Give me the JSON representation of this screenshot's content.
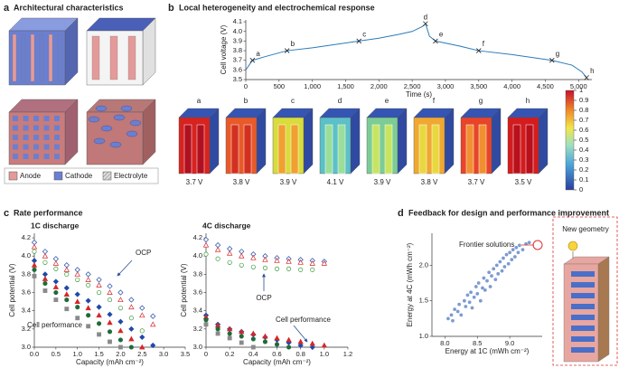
{
  "panels": {
    "a": {
      "letter": "a",
      "title": "Architectural characteristics",
      "legend": [
        "Anode",
        "Cathode",
        "Electrolyte"
      ]
    },
    "b": {
      "letter": "b",
      "title": "Local heterogeneity and electrochemical response",
      "renders": [
        {
          "label": "a",
          "voltage": "3.7 V",
          "outer": "#d7231f",
          "inner": "#b01020"
        },
        {
          "label": "b",
          "voltage": "3.8 V",
          "outer": "#e85a2a",
          "inner": "#d23020"
        },
        {
          "label": "c",
          "voltage": "3.9 V",
          "outer": "#d8dc3c",
          "inner": "#f0a030"
        },
        {
          "label": "d",
          "voltage": "4.1 V",
          "outer": "#5cc0c8",
          "inner": "#9ade9a"
        },
        {
          "label": "e",
          "voltage": "3.9 V",
          "outer": "#7ccc96",
          "inner": "#c8e460"
        },
        {
          "label": "f",
          "voltage": "3.8 V",
          "outer": "#f0a832",
          "inner": "#e8d840"
        },
        {
          "label": "g",
          "voltage": "3.7 V",
          "outer": "#e8442a",
          "inner": "#f09030"
        },
        {
          "label": "h",
          "voltage": "3.5 V",
          "outer": "#d41c1e",
          "inner": "#b8101c"
        }
      ],
      "colorbar": {
        "ticks": [
          0,
          0.1,
          0.2,
          0.3,
          0.4,
          0.5,
          0.6,
          0.7,
          0.8,
          0.9,
          1
        ]
      }
    },
    "c": {
      "letter": "c",
      "title": "Rate performance"
    },
    "d": {
      "letter": "d",
      "title": "Feedback for design and performance improvement",
      "diagram_label": "New geometry"
    }
  },
  "chart_data": [
    {
      "type": "line",
      "xlabel": "Time (s)",
      "ylabel": "Cell voltage (V)",
      "xlim": [
        0,
        5200
      ],
      "ylim": [
        3.5,
        4.12
      ],
      "xticks": [
        0,
        500,
        {
          "value": 1000,
          "label": "1,000"
        },
        {
          "value": 1500,
          "label": "1,500"
        },
        {
          "value": 2000,
          "label": "2,000"
        },
        {
          "value": 2500,
          "label": "2,500"
        },
        {
          "value": 3000,
          "label": "3,000"
        },
        {
          "value": 3500,
          "label": "3,500"
        },
        {
          "value": 4000,
          "label": "4,000"
        },
        {
          "value": 4500,
          "label": "4,500"
        },
        {
          "value": 5000,
          "label": "5,000"
        }
      ],
      "yticks": [
        3.5,
        3.6,
        3.7,
        3.8,
        3.9,
        {
          "value": 4,
          "label": "4.0"
        },
        4.1
      ],
      "x": [
        0,
        100,
        300,
        620,
        1000,
        1400,
        1700,
        2000,
        2300,
        2500,
        2650,
        2700,
        2760,
        2850,
        3200,
        3500,
        4000,
        4600,
        4900,
        5050,
        5120
      ],
      "series": [
        {
          "color": "#2b7bb9",
          "values": [
            3.6,
            3.7,
            3.74,
            3.8,
            3.83,
            3.87,
            3.9,
            3.93,
            3.97,
            4.0,
            4.05,
            4.08,
            3.95,
            3.9,
            3.85,
            3.8,
            3.76,
            3.7,
            3.65,
            3.58,
            3.52
          ]
        }
      ],
      "markers": {
        "x": [
          100,
          620,
          1700,
          2700,
          2850,
          3500,
          4600,
          5120
        ],
        "values": [
          3.7,
          3.8,
          3.9,
          4.08,
          3.9,
          3.8,
          3.7,
          3.52
        ],
        "labels": [
          "a",
          "b",
          "c",
          "d",
          "e",
          "f",
          "g",
          "h"
        ]
      }
    },
    {
      "type": "scatter",
      "title": "1C discharge",
      "xlabel": "Capacity (mAh cm⁻²)",
      "ylabel": "Cell potential (V)",
      "xlim": [
        0,
        3.5
      ],
      "ylim": [
        3,
        4.25
      ],
      "xticks": [
        {
          "value": 0,
          "label": "0.0"
        },
        0.5,
        {
          "value": 1,
          "label": "1.0"
        },
        1.5,
        {
          "value": 2,
          "label": "2.0"
        },
        2.5,
        {
          "value": 3,
          "label": "3.0"
        },
        3.5
      ],
      "yticks": [
        {
          "value": 3,
          "label": "3.0"
        },
        3.2,
        3.4,
        3.6,
        3.8,
        {
          "value": 4,
          "label": "4.0"
        },
        4.2
      ],
      "annotations": [
        "OCP",
        "Cell performance"
      ],
      "series": [
        {
          "color": "#1f4aa8",
          "marker": "diamond",
          "filled": false,
          "x": [
            0,
            0.25,
            0.5,
            0.75,
            1,
            1.25,
            1.5,
            1.75,
            2,
            2.25,
            2.5,
            2.75
          ],
          "values": [
            4.15,
            4.05,
            3.97,
            3.9,
            3.85,
            3.8,
            3.74,
            3.67,
            3.6,
            3.52,
            3.43,
            3.34
          ]
        },
        {
          "color": "#d62728",
          "marker": "triangle",
          "filled": false,
          "x": [
            0,
            0.25,
            0.5,
            0.75,
            1,
            1.25,
            1.5,
            1.75,
            2,
            2.25,
            2.5,
            2.75
          ],
          "values": [
            4.1,
            4.0,
            3.92,
            3.85,
            3.8,
            3.74,
            3.68,
            3.6,
            3.52,
            3.44,
            3.35,
            3.25
          ]
        },
        {
          "color": "#3a9a3a",
          "marker": "circle",
          "filled": false,
          "x": [
            0,
            0.25,
            0.5,
            0.75,
            1,
            1.25,
            1.5,
            1.75,
            2,
            2.25,
            2.5
          ],
          "values": [
            4.05,
            3.93,
            3.86,
            3.8,
            3.74,
            3.68,
            3.6,
            3.52,
            3.43,
            3.32,
            3.18
          ]
        },
        {
          "color": "#1f4aa8",
          "marker": "diamond",
          "filled": true,
          "x": [
            0,
            0.25,
            0.5,
            0.75,
            1,
            1.25,
            1.5,
            1.75,
            2,
            2.25,
            2.5,
            2.75
          ],
          "values": [
            3.95,
            3.8,
            3.72,
            3.65,
            3.58,
            3.51,
            3.44,
            3.36,
            3.28,
            3.2,
            3.11,
            3.02
          ]
        },
        {
          "color": "#d62728",
          "marker": "triangle",
          "filled": true,
          "x": [
            0,
            0.25,
            0.5,
            0.75,
            1,
            1.25,
            1.5,
            1.75,
            2,
            2.25,
            2.5
          ],
          "values": [
            3.9,
            3.75,
            3.66,
            3.58,
            3.5,
            3.43,
            3.35,
            3.27,
            3.18,
            3.09,
            3.0
          ]
        },
        {
          "color": "#1e6b3a",
          "marker": "circle",
          "filled": true,
          "x": [
            0,
            0.25,
            0.5,
            0.75,
            1,
            1.25,
            1.5,
            1.75,
            2,
            2.25
          ],
          "values": [
            3.85,
            3.7,
            3.6,
            3.52,
            3.44,
            3.35,
            3.26,
            3.17,
            3.08,
            3.0
          ]
        },
        {
          "color": "#8a8a8a",
          "marker": "square",
          "filled": true,
          "x": [
            0,
            0.25,
            0.5,
            0.75,
            1,
            1.25,
            1.5,
            1.75,
            2
          ],
          "values": [
            3.78,
            3.62,
            3.52,
            3.42,
            3.32,
            3.23,
            3.14,
            3.06,
            3.0
          ]
        }
      ]
    },
    {
      "type": "scatter",
      "title": "4C discharge",
      "xlabel": "Capacity (mAh cm⁻²)",
      "ylabel": "Cell potential (V)",
      "xlim": [
        0,
        1.2
      ],
      "ylim": [
        3,
        4.25
      ],
      "xticks": [
        0,
        0.2,
        0.4,
        0.6,
        0.8,
        {
          "value": 1,
          "label": "1.0"
        },
        1.2
      ],
      "yticks": [
        {
          "value": 3,
          "label": "3.0"
        },
        3.2,
        3.4,
        3.6,
        3.8,
        {
          "value": 4,
          "label": "4.0"
        },
        4.2
      ],
      "annotations": [
        "OCP",
        "Cell performance"
      ],
      "series": [
        {
          "color": "#1f4aa8",
          "marker": "diamond",
          "filled": false,
          "x": [
            0,
            0.1,
            0.2,
            0.3,
            0.4,
            0.5,
            0.6,
            0.7,
            0.8,
            0.9,
            1
          ],
          "values": [
            4.18,
            4.12,
            4.08,
            4.05,
            4.02,
            4.0,
            3.98,
            3.97,
            3.96,
            3.95,
            3.94
          ]
        },
        {
          "color": "#d62728",
          "marker": "triangle",
          "filled": false,
          "x": [
            0,
            0.1,
            0.2,
            0.3,
            0.4,
            0.5,
            0.6,
            0.7,
            0.8,
            0.9,
            1
          ],
          "values": [
            4.12,
            4.07,
            4.03,
            4.0,
            3.98,
            3.96,
            3.95,
            3.94,
            3.93,
            3.92,
            3.92
          ]
        },
        {
          "color": "#3a9a3a",
          "marker": "circle",
          "filled": false,
          "x": [
            0,
            0.1,
            0.2,
            0.3,
            0.4,
            0.5,
            0.6,
            0.7,
            0.8,
            0.9
          ],
          "values": [
            4.02,
            3.97,
            3.93,
            3.9,
            3.88,
            3.87,
            3.86,
            3.86,
            3.85,
            3.85
          ]
        },
        {
          "color": "#1f4aa8",
          "marker": "diamond",
          "filled": true,
          "x": [
            0,
            0.1,
            0.2,
            0.3,
            0.4,
            0.5,
            0.6,
            0.7,
            0.8,
            0.9
          ],
          "values": [
            3.35,
            3.25,
            3.2,
            3.17,
            3.14,
            3.11,
            3.08,
            3.05,
            3.02,
            3.0
          ]
        },
        {
          "color": "#d62728",
          "marker": "triangle",
          "filled": true,
          "x": [
            0,
            0.1,
            0.2,
            0.3,
            0.4,
            0.5,
            0.6,
            0.7,
            0.8,
            0.9,
            1
          ],
          "values": [
            3.33,
            3.24,
            3.2,
            3.17,
            3.15,
            3.12,
            3.1,
            3.08,
            3.06,
            3.04,
            3.02
          ]
        },
        {
          "color": "#1e6b3a",
          "marker": "circle",
          "filled": true,
          "x": [
            0,
            0.1,
            0.2,
            0.3,
            0.4,
            0.5,
            0.6,
            0.7
          ],
          "values": [
            3.3,
            3.2,
            3.15,
            3.12,
            3.09,
            3.06,
            3.03,
            3.0
          ]
        },
        {
          "color": "#8a8a8a",
          "marker": "square",
          "filled": true,
          "x": [
            0,
            0.1,
            0.2,
            0.3,
            0.4
          ],
          "values": [
            3.25,
            3.15,
            3.1,
            3.05,
            3.0
          ]
        }
      ]
    },
    {
      "type": "scatter",
      "xlabel": "Energy at 1C (mWh cm⁻²)",
      "ylabel": "Energy at 4C (mWh cm⁻²)",
      "xlim": [
        7.8,
        9.5
      ],
      "ylim": [
        1,
        2.45
      ],
      "xticks": [
        {
          "value": 8,
          "label": "8.0"
        },
        8.5,
        {
          "value": 9,
          "label": "9.0"
        }
      ],
      "yticks": [
        {
          "value": 1,
          "label": "1.0"
        },
        1.5,
        {
          "value": 2,
          "label": "2.0"
        }
      ],
      "annotations": [
        "Frontier solutions"
      ],
      "series": [
        {
          "color": "#7d9bd1",
          "marker": "circle",
          "filled": true,
          "x": [
            8.05,
            8.1,
            8.12,
            8.15,
            8.2,
            8.22,
            8.25,
            8.3,
            8.32,
            8.35,
            8.38,
            8.4,
            8.42,
            8.45,
            8.48,
            8.5,
            8.52,
            8.55,
            8.58,
            8.6,
            8.62,
            8.65,
            8.68,
            8.7,
            8.72,
            8.75,
            8.78,
            8.8,
            8.82,
            8.85,
            8.88,
            8.9,
            8.92,
            8.95,
            8.98,
            9.0,
            9.03,
            9.05,
            9.08,
            9.1,
            9.13,
            9.15,
            9.2,
            9.25,
            9.3
          ],
          "values": [
            1.25,
            1.3,
            1.22,
            1.38,
            1.35,
            1.45,
            1.3,
            1.5,
            1.42,
            1.58,
            1.48,
            1.62,
            1.4,
            1.55,
            1.7,
            1.6,
            1.75,
            1.5,
            1.68,
            1.82,
            1.65,
            1.78,
            1.9,
            1.7,
            1.85,
            1.95,
            1.8,
            2.0,
            1.88,
            2.05,
            1.92,
            2.1,
            1.98,
            2.15,
            2.02,
            2.18,
            2.08,
            2.22,
            2.12,
            2.25,
            2.18,
            2.28,
            2.22,
            2.3,
            2.32
          ]
        }
      ]
    }
  ]
}
